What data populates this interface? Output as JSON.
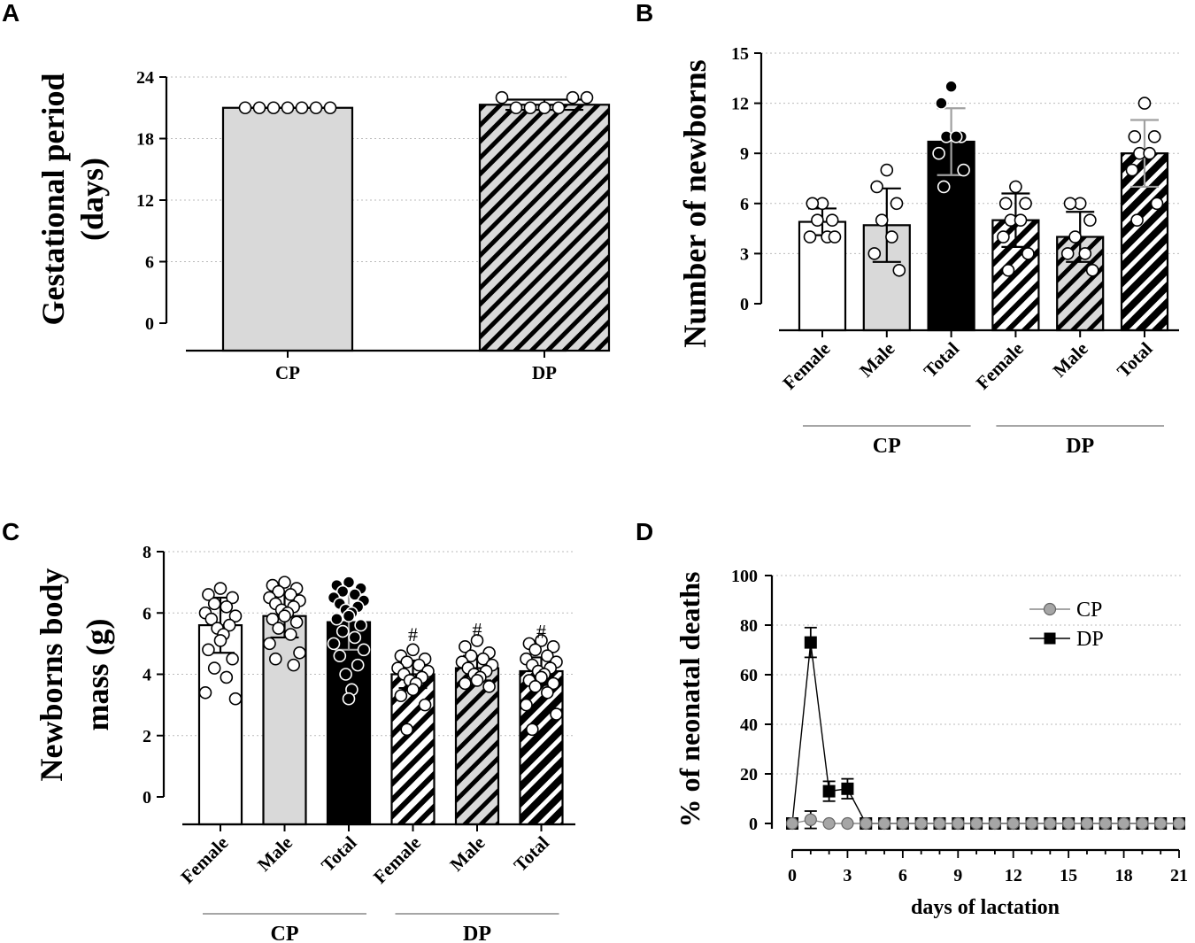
{
  "colors": {
    "white_fill": "#ffffff",
    "gray_fill": "#d9d9d9",
    "black_fill": "#000000",
    "errbar_gray": "#a0a0a0",
    "cp_marker": "#a6a6a6",
    "dp_marker": "#000000"
  },
  "chart_data": [
    {
      "panel": "A",
      "type": "bar",
      "title": "",
      "ylabel": [
        "Gestational period",
        "(days)"
      ],
      "ylim": [
        0,
        24
      ],
      "yticks": [
        0,
        6,
        12,
        18,
        24
      ],
      "categories": [
        "CP",
        "DP"
      ],
      "values": [
        21.0,
        21.3
      ],
      "sd": [
        0.0,
        0.5
      ],
      "fills": [
        "gray",
        "gray-hatched"
      ],
      "points": [
        [
          21,
          21,
          21,
          21,
          21,
          21,
          21
        ],
        [
          22,
          21,
          21,
          21,
          21,
          22,
          22
        ]
      ]
    },
    {
      "panel": "B",
      "type": "bar",
      "ylabel": "Number of newborns",
      "ylim": [
        0,
        15
      ],
      "yticks": [
        0,
        3,
        6,
        9,
        12,
        15
      ],
      "categories": [
        "Female",
        "Male",
        "Total",
        "Female",
        "Male",
        "Total"
      ],
      "groups": [
        {
          "label": "CP",
          "span": [
            0,
            2
          ]
        },
        {
          "label": "DP",
          "span": [
            3,
            5
          ]
        }
      ],
      "values": [
        4.9,
        4.7,
        9.7,
        5.0,
        4.0,
        9.0
      ],
      "sd": [
        0.8,
        2.2,
        2.0,
        1.6,
        1.5,
        2.0
      ],
      "fills": [
        "white",
        "gray",
        "black",
        "white-hatched",
        "gray-hatched",
        "black-hatched"
      ],
      "points": [
        [
          6,
          6,
          5,
          5,
          4,
          4,
          4
        ],
        [
          8,
          7,
          6,
          5,
          4,
          3,
          2
        ],
        [
          13,
          12,
          10,
          10,
          10,
          9,
          8,
          7
        ],
        [
          7,
          6,
          6,
          5,
          5,
          4,
          3,
          2
        ],
        [
          6,
          6,
          5,
          4,
          3,
          3,
          2
        ],
        [
          12,
          10,
          10,
          9,
          9,
          8,
          6,
          5
        ]
      ]
    },
    {
      "panel": "C",
      "type": "bar",
      "ylabel": [
        "Newborns body",
        "mass (g)"
      ],
      "ylim": [
        0,
        8
      ],
      "yticks": [
        0,
        2,
        4,
        6,
        8
      ],
      "categories": [
        "Female",
        "Male",
        "Total",
        "Female",
        "Male",
        "Total"
      ],
      "groups": [
        {
          "label": "CP",
          "span": [
            0,
            2
          ]
        },
        {
          "label": "DP",
          "span": [
            3,
            5
          ]
        }
      ],
      "values": [
        5.6,
        5.9,
        5.7,
        4.0,
        4.2,
        4.1
      ],
      "sd": [
        0.9,
        0.7,
        0.9,
        0.45,
        0.4,
        0.45
      ],
      "annotations": [
        "",
        "",
        "",
        "#",
        "#",
        "#"
      ],
      "fills": [
        "white",
        "gray",
        "black",
        "white-hatched",
        "gray-hatched",
        "black-hatched"
      ],
      "points": [
        [
          6.8,
          6.6,
          6.5,
          6.3,
          6.2,
          6.0,
          5.9,
          5.8,
          5.6,
          5.5,
          5.3,
          5.1,
          4.8,
          4.5,
          4.2,
          3.9,
          3.4,
          3.2
        ],
        [
          7.0,
          6.9,
          6.8,
          6.7,
          6.6,
          6.5,
          6.4,
          6.3,
          6.2,
          6.1,
          6.0,
          5.9,
          5.8,
          5.7,
          5.5,
          5.3,
          5.0,
          4.7,
          4.5,
          4.3
        ],
        [
          7.0,
          6.9,
          6.8,
          6.7,
          6.6,
          6.5,
          6.4,
          6.3,
          6.2,
          6.1,
          6.0,
          5.9,
          5.8,
          5.6,
          5.4,
          5.2,
          5.0,
          4.8,
          4.6,
          4.3,
          4.0,
          3.5,
          3.2
        ],
        [
          4.8,
          4.6,
          4.5,
          4.4,
          4.3,
          4.2,
          4.1,
          4.0,
          3.9,
          3.8,
          3.7,
          3.5,
          3.3,
          3.0,
          2.2
        ],
        [
          5.1,
          4.9,
          4.7,
          4.6,
          4.5,
          4.4,
          4.3,
          4.2,
          4.1,
          4.0,
          3.9,
          3.8,
          3.7,
          3.6
        ],
        [
          5.1,
          5.0,
          4.9,
          4.8,
          4.6,
          4.5,
          4.4,
          4.3,
          4.2,
          4.1,
          4.0,
          3.9,
          3.8,
          3.7,
          3.6,
          3.4,
          3.0,
          2.7,
          2.2
        ]
      ]
    },
    {
      "panel": "D",
      "type": "line",
      "ylabel": "% of neonatal deaths",
      "xlabel": "days of lactation",
      "ylim": [
        0,
        100
      ],
      "yticks": [
        0,
        20,
        40,
        60,
        80,
        100
      ],
      "xlim": [
        0,
        21
      ],
      "xticks": [
        0,
        3,
        6,
        9,
        12,
        15,
        18,
        21
      ],
      "legend": "top-right",
      "series": [
        {
          "name": "CP",
          "x": [
            0,
            1,
            2,
            3,
            4,
            5,
            6,
            7,
            8,
            9,
            10,
            11,
            12,
            13,
            14,
            15,
            16,
            17,
            18,
            19,
            20,
            21
          ],
          "values": [
            0,
            1.5,
            0,
            0,
            0,
            0,
            0,
            0,
            0,
            0,
            0,
            0,
            0,
            0,
            0,
            0,
            0,
            0,
            0,
            0,
            0,
            0
          ],
          "err": [
            0,
            3.5,
            0,
            0,
            0,
            0,
            0,
            0,
            0,
            0,
            0,
            0,
            0,
            0,
            0,
            0,
            0,
            0,
            0,
            0,
            0,
            0
          ]
        },
        {
          "name": "DP",
          "x": [
            0,
            1,
            2,
            3,
            4,
            5,
            6,
            7,
            8,
            9,
            10,
            11,
            12,
            13,
            14,
            15,
            16,
            17,
            18,
            19,
            20,
            21
          ],
          "values": [
            0,
            73,
            13,
            14,
            0,
            0,
            0,
            0,
            0,
            0,
            0,
            0,
            0,
            0,
            0,
            0,
            0,
            0,
            0,
            0,
            0,
            0
          ],
          "err": [
            0,
            6,
            4,
            4,
            0,
            0,
            0,
            0,
            0,
            0,
            0,
            0,
            0,
            0,
            0,
            0,
            0,
            0,
            0,
            0,
            0,
            0
          ]
        }
      ]
    }
  ]
}
